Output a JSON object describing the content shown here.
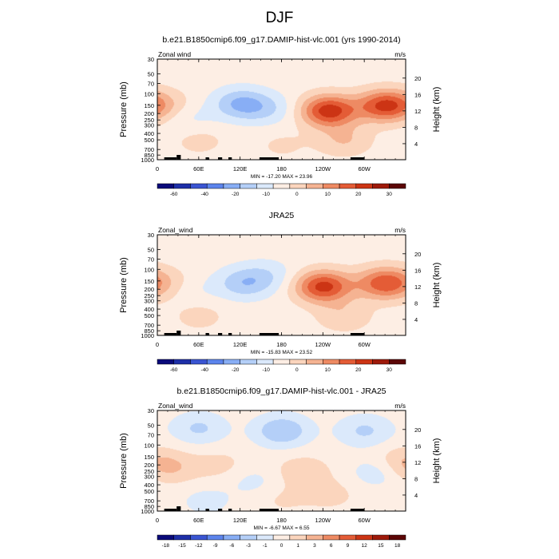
{
  "figure": {
    "title": "DJF"
  },
  "chart_data": [
    {
      "type": "heatmap",
      "title": "b.e21.B1850cmip6.f09_g17.DAMIP-hist-vlc.001 (yrs 1990-2014)",
      "left_label": "Zonal wind",
      "units": "m/s",
      "ylabel": "Pressure (mb)",
      "ylabel_right": "Height (km)",
      "x_ticks": [
        "0",
        "60E",
        "120E",
        "180",
        "120W",
        "60W"
      ],
      "y_ticks": [
        "30",
        "50",
        "70",
        "100",
        "150",
        "200",
        "250",
        "300",
        "400",
        "500",
        "700",
        "850",
        "1000"
      ],
      "height_ticks": [
        "20",
        "16",
        "12",
        "8",
        "4"
      ],
      "stats": "MIN = -17.20  MAX =  23.96",
      "colorbar": {
        "colors": [
          "#0a0a7a",
          "#1e2fa8",
          "#3a55d2",
          "#5c84ec",
          "#88aef5",
          "#b4cff8",
          "#dbe9fb",
          "#fdeee4",
          "#fbd5bd",
          "#f5b392",
          "#ee8a63",
          "#e45c36",
          "#cc3414",
          "#9e1a0a",
          "#5c0606"
        ],
        "labels": [
          "-60",
          "-40",
          "-20",
          "-10",
          "0",
          "10",
          "20",
          "30"
        ]
      },
      "features": [
        {
          "x": 120,
          "y": 140,
          "v": -12
        },
        {
          "x": 160,
          "y": 170,
          "v": -6
        },
        {
          "x": 45,
          "y": 230,
          "v": -4
        },
        {
          "x": 15,
          "y": 150,
          "v": 5
        },
        {
          "x": 248,
          "y": 180,
          "v": 24
        },
        {
          "x": 330,
          "y": 150,
          "v": 22
        },
        {
          "x": 270,
          "y": 500,
          "v": 7
        },
        {
          "x": 60,
          "y": 500,
          "v": 4
        },
        {
          "x": 180,
          "y": 600,
          "v": 3
        }
      ]
    },
    {
      "type": "heatmap",
      "title": "JRA25",
      "left_label": "Zonal_wind",
      "units": "m/s",
      "ylabel": "Pressure (mb)",
      "ylabel_right": "Height (km)",
      "x_ticks": [
        "0",
        "60E",
        "120E",
        "180",
        "120W",
        "60W"
      ],
      "y_ticks": [
        "30",
        "50",
        "70",
        "100",
        "150",
        "200",
        "250",
        "300",
        "400",
        "500",
        "700",
        "850",
        "1000"
      ],
      "height_ticks": [
        "20",
        "16",
        "12",
        "8",
        "4"
      ],
      "stats": "MIN = -15.83  MAX =  23.52",
      "colorbar": {
        "colors": [
          "#0a0a7a",
          "#1e2fa8",
          "#3a55d2",
          "#5c84ec",
          "#88aef5",
          "#b4cff8",
          "#dbe9fb",
          "#fdeee4",
          "#fbd5bd",
          "#f5b392",
          "#ee8a63",
          "#e45c36",
          "#cc3414",
          "#9e1a0a",
          "#5c0606"
        ],
        "labels": [
          "-60",
          "-40",
          "-20",
          "-10",
          "0",
          "10",
          "20",
          "30"
        ]
      },
      "features": [
        {
          "x": 125,
          "y": 160,
          "v": -10
        },
        {
          "x": 160,
          "y": 120,
          "v": -5
        },
        {
          "x": 50,
          "y": 200,
          "v": -3
        },
        {
          "x": 20,
          "y": 160,
          "v": 4
        },
        {
          "x": 240,
          "y": 180,
          "v": 23
        },
        {
          "x": 330,
          "y": 160,
          "v": 20
        },
        {
          "x": 270,
          "y": 500,
          "v": 6
        },
        {
          "x": 60,
          "y": 500,
          "v": 4
        }
      ]
    },
    {
      "type": "heatmap",
      "title": "b.e21.B1850cmip6.f09_g17.DAMIP-hist-vlc.001 - JRA25",
      "left_label": "Zonal_wind",
      "units": "m/s",
      "ylabel": "Pressure (mb)",
      "ylabel_right": "Height (km)",
      "x_ticks": [
        "0",
        "60E",
        "120E",
        "180",
        "120W",
        "60W"
      ],
      "y_ticks": [
        "30",
        "50",
        "70",
        "100",
        "150",
        "200",
        "250",
        "300",
        "400",
        "500",
        "700",
        "850",
        "1000"
      ],
      "height_ticks": [
        "20",
        "16",
        "12",
        "8",
        "4"
      ],
      "stats": "MIN =  -6.67  MAX =   6.55",
      "colorbar": {
        "colors": [
          "#0a0a7a",
          "#1e2fa8",
          "#3a55d2",
          "#5c84ec",
          "#88aef5",
          "#b4cff8",
          "#dbe9fb",
          "#fdeee4",
          "#fbd5bd",
          "#f5b392",
          "#ee8a63",
          "#e45c36",
          "#cc3414",
          "#9e1a0a",
          "#5c0606"
        ],
        "labels": [
          "-18",
          "-15",
          "-12",
          "-9",
          "-6",
          "-3",
          "-1",
          "0",
          "1",
          "3",
          "6",
          "9",
          "12",
          "15",
          "18"
        ]
      },
      "features": [
        {
          "x": 180,
          "y": 60,
          "v": -6
        },
        {
          "x": 60,
          "y": 55,
          "v": -4
        },
        {
          "x": 300,
          "y": 60,
          "v": -4
        },
        {
          "x": 140,
          "y": 350,
          "v": -2
        },
        {
          "x": 320,
          "y": 250,
          "v": -3
        },
        {
          "x": 20,
          "y": 220,
          "v": 3
        },
        {
          "x": 90,
          "y": 200,
          "v": 2
        },
        {
          "x": 210,
          "y": 250,
          "v": 3
        },
        {
          "x": 350,
          "y": 180,
          "v": 3
        },
        {
          "x": 250,
          "y": 550,
          "v": 2
        },
        {
          "x": 70,
          "y": 700,
          "v": -2
        },
        {
          "x": 180,
          "y": 650,
          "v": 1.5
        }
      ]
    }
  ]
}
